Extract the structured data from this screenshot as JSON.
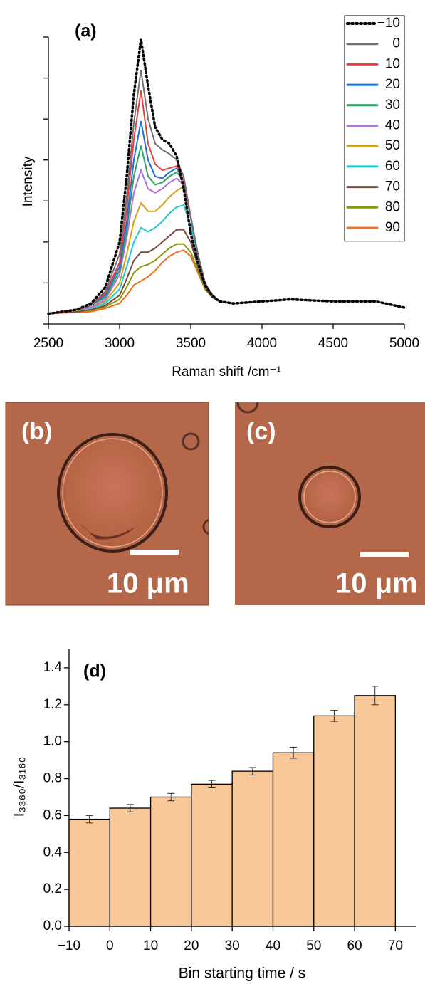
{
  "chart_data": [
    {
      "type": "line",
      "panel": "(a)",
      "x_label": "Raman shift /cm⁻¹",
      "y_label": "Intensity",
      "x": [
        2500,
        2600,
        2700,
        2800,
        2900,
        3000,
        3050,
        3100,
        3150,
        3200,
        3250,
        3300,
        3350,
        3400,
        3450,
        3500,
        3550,
        3600,
        3650,
        3700,
        3800,
        4000,
        4200,
        4500,
        4800,
        5000
      ],
      "xlim": [
        2500,
        5000
      ],
      "xticks": [
        2500,
        3000,
        3500,
        4000,
        4500,
        5000
      ],
      "ylim": [
        0,
        7
      ],
      "yticks": [
        0,
        1,
        2,
        3,
        4,
        5,
        6,
        7
      ],
      "legend": "top-right",
      "series": [
        {
          "name": "−10",
          "color": "#000000",
          "style": "dotted",
          "values": [
            0.25,
            0.3,
            0.35,
            0.5,
            0.9,
            2.0,
            3.6,
            5.6,
            6.95,
            5.8,
            4.8,
            4.5,
            4.4,
            4.1,
            3.3,
            2.2,
            1.5,
            0.95,
            0.7,
            0.55,
            0.5,
            0.55,
            0.6,
            0.55,
            0.55,
            0.4
          ]
        },
        {
          "name": "0",
          "color": "#707070",
          "style": "solid",
          "values": [
            0.25,
            0.3,
            0.35,
            0.45,
            0.8,
            1.7,
            3.1,
            4.9,
            6.2,
            5.0,
            4.4,
            4.25,
            4.15,
            4.0,
            3.6,
            2.6,
            1.7,
            1.0,
            0.7,
            0.55,
            0.5,
            0.55,
            0.6,
            0.55,
            0.55,
            0.4
          ]
        },
        {
          "name": "10",
          "color": "#e84040",
          "style": "solid",
          "values": [
            0.25,
            0.3,
            0.35,
            0.45,
            0.75,
            1.5,
            2.8,
            4.5,
            5.7,
            4.4,
            3.9,
            3.75,
            3.8,
            3.85,
            3.5,
            2.6,
            1.7,
            1.0,
            0.7,
            0.55,
            0.5,
            0.55,
            0.6,
            0.55,
            0.55,
            0.4
          ]
        },
        {
          "name": "20",
          "color": "#1f6fd6",
          "style": "solid",
          "values": [
            0.25,
            0.3,
            0.35,
            0.45,
            0.7,
            1.4,
            2.5,
            4.0,
            4.95,
            4.0,
            3.6,
            3.55,
            3.7,
            3.8,
            3.5,
            2.6,
            1.7,
            1.0,
            0.7,
            0.55,
            0.5,
            0.55,
            0.6,
            0.55,
            0.55,
            0.4
          ]
        },
        {
          "name": "30",
          "color": "#2ea060",
          "style": "solid",
          "values": [
            0.25,
            0.3,
            0.35,
            0.45,
            0.65,
            1.3,
            2.3,
            3.6,
            4.35,
            3.6,
            3.4,
            3.45,
            3.6,
            3.7,
            3.5,
            2.6,
            1.7,
            1.0,
            0.7,
            0.55,
            0.5,
            0.55,
            0.6,
            0.55,
            0.55,
            0.4
          ]
        },
        {
          "name": "40",
          "color": "#b070e0",
          "style": "solid",
          "values": [
            0.25,
            0.3,
            0.35,
            0.4,
            0.6,
            1.2,
            2.1,
            3.2,
            3.75,
            3.3,
            3.2,
            3.3,
            3.45,
            3.55,
            3.4,
            2.6,
            1.7,
            1.0,
            0.7,
            0.55,
            0.5,
            0.55,
            0.6,
            0.55,
            0.55,
            0.4
          ]
        },
        {
          "name": "50",
          "color": "#d4a017",
          "style": "solid",
          "values": [
            0.25,
            0.3,
            0.33,
            0.4,
            0.55,
            1.0,
            1.7,
            2.5,
            2.95,
            2.75,
            2.75,
            2.9,
            3.1,
            3.25,
            3.35,
            2.6,
            1.7,
            1.0,
            0.7,
            0.55,
            0.5,
            0.55,
            0.6,
            0.55,
            0.55,
            0.4
          ]
        },
        {
          "name": "60",
          "color": "#20c8d0",
          "style": "solid",
          "values": [
            0.25,
            0.3,
            0.33,
            0.38,
            0.5,
            0.85,
            1.4,
            2.0,
            2.35,
            2.25,
            2.35,
            2.5,
            2.7,
            2.85,
            2.9,
            2.4,
            1.6,
            1.0,
            0.7,
            0.55,
            0.5,
            0.55,
            0.6,
            0.55,
            0.55,
            0.4
          ]
        },
        {
          "name": "70",
          "color": "#7a4a40",
          "style": "solid",
          "values": [
            0.25,
            0.28,
            0.3,
            0.35,
            0.45,
            0.7,
            1.1,
            1.55,
            1.75,
            1.75,
            1.85,
            2.0,
            2.15,
            2.3,
            2.3,
            2.0,
            1.4,
            0.9,
            0.65,
            0.55,
            0.5,
            0.55,
            0.6,
            0.55,
            0.55,
            0.4
          ]
        },
        {
          "name": "80",
          "color": "#8a9a10",
          "style": "solid",
          "values": [
            0.25,
            0.28,
            0.3,
            0.33,
            0.42,
            0.6,
            0.9,
            1.25,
            1.4,
            1.45,
            1.55,
            1.7,
            1.85,
            1.95,
            1.95,
            1.75,
            1.3,
            0.85,
            0.65,
            0.55,
            0.5,
            0.55,
            0.6,
            0.55,
            0.55,
            0.4
          ]
        },
        {
          "name": "90",
          "color": "#f07020",
          "style": "solid",
          "values": [
            0.25,
            0.27,
            0.28,
            0.3,
            0.38,
            0.5,
            0.7,
            0.95,
            1.05,
            1.15,
            1.3,
            1.5,
            1.65,
            1.75,
            1.8,
            1.65,
            1.25,
            0.85,
            0.65,
            0.55,
            0.5,
            0.55,
            0.6,
            0.55,
            0.55,
            0.4
          ]
        }
      ]
    },
    {
      "type": "histogram",
      "panel": "(d)",
      "x_label": "Bin starting time / s",
      "y_label": "I₃₃₆₀/I₃₁₆₀",
      "bins": [
        -10,
        0,
        10,
        20,
        30,
        40,
        50,
        60,
        70
      ],
      "values": [
        0.58,
        0.64,
        0.7,
        0.77,
        0.84,
        0.94,
        1.14,
        1.25
      ],
      "errors": [
        0.02,
        0.02,
        0.02,
        0.02,
        0.02,
        0.03,
        0.03,
        0.05
      ],
      "color": "#f8c898",
      "xlim": [
        -10,
        75
      ],
      "xticks": [
        {
          "value": -10,
          "label": "−10"
        },
        0,
        10,
        20,
        30,
        40,
        50,
        60,
        70
      ],
      "ylim": [
        0,
        1.5
      ],
      "yticks": [
        {
          "value": 0,
          "label": "0.0"
        },
        0.2,
        0.4,
        0.6,
        0.8,
        {
          "value": 1,
          "label": "1.0"
        },
        1.2,
        1.4
      ]
    }
  ],
  "panels": [
    {
      "label": "(b)",
      "scale_bar": "10 μm"
    },
    {
      "label": "(c)",
      "scale_bar": "10 μm"
    }
  ]
}
